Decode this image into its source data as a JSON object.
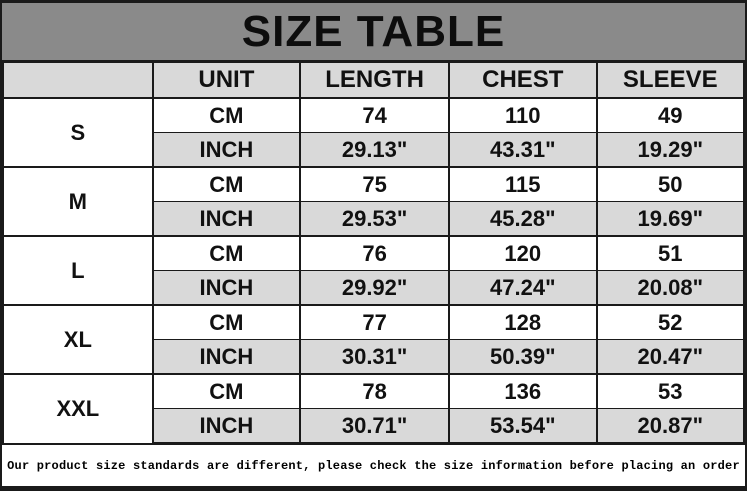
{
  "title": "SIZE TABLE",
  "table": {
    "columns": [
      "UNIT",
      "LENGTH",
      "CHEST",
      "SLEEVE"
    ],
    "sizes": [
      {
        "label": "S",
        "cm": [
          "CM",
          "74",
          "110",
          "49"
        ],
        "inch": [
          "INCH",
          "29.13\"",
          "43.31\"",
          "19.29\""
        ]
      },
      {
        "label": "M",
        "cm": [
          "CM",
          "75",
          "115",
          "50"
        ],
        "inch": [
          "INCH",
          "29.53\"",
          "45.28\"",
          "19.69\""
        ]
      },
      {
        "label": "L",
        "cm": [
          "CM",
          "76",
          "120",
          "51"
        ],
        "inch": [
          "INCH",
          "29.92\"",
          "47.24\"",
          "20.08\""
        ]
      },
      {
        "label": "XL",
        "cm": [
          "CM",
          "77",
          "128",
          "52"
        ],
        "inch": [
          "INCH",
          "30.31\"",
          "50.39\"",
          "20.47\""
        ]
      },
      {
        "label": "XXL",
        "cm": [
          "CM",
          "78",
          "136",
          "53"
        ],
        "inch": [
          "INCH",
          "30.71\"",
          "53.54\"",
          "20.87\""
        ]
      }
    ]
  },
  "footer": {
    "note": "Our product size standards are different, please check the size information before placing an order"
  },
  "colors": {
    "title_bg": "#8a8a8a",
    "cell_gray": "#d9d9d9",
    "border": "#1a1a1a",
    "text": "#111111"
  }
}
